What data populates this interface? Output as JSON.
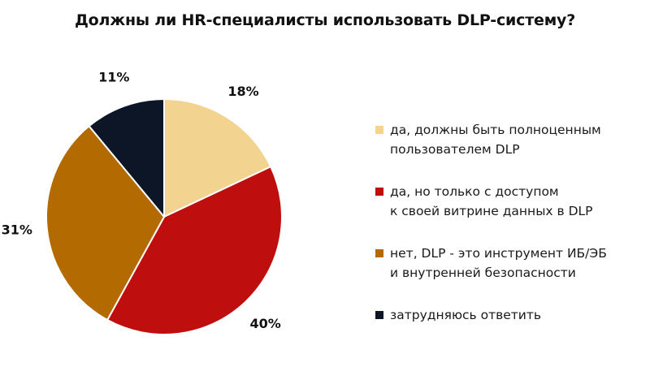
{
  "chart_data": {
    "type": "pie",
    "title": "Должны ли HR-специалисты использовать DLP-систему?",
    "slices": [
      {
        "label": "да, должны быть полноценным\nпользователем DLP",
        "value": 18,
        "value_label": "18%",
        "color": "#F2D38F"
      },
      {
        "label": "да, но только с доступом\nк своей витрине данных в DLP",
        "value": 40,
        "value_label": "40%",
        "color": "#BE0E0E"
      },
      {
        "label": "нет, DLP - это инструмент ИБ/ЭБ\nи внутренней безопасности",
        "value": 31,
        "value_label": "31%",
        "color": "#B36A00"
      },
      {
        "label": "затрудняюсь ответить",
        "value": 11,
        "value_label": "11%",
        "color": "#0D1626"
      }
    ],
    "start": "12 o'clock",
    "direction": "clockwise",
    "legend_position": "right"
  }
}
